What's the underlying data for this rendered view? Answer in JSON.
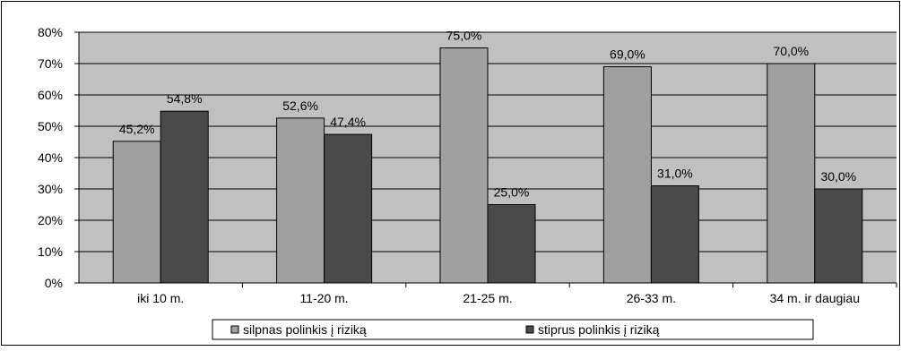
{
  "chart_data": {
    "type": "bar",
    "categories": [
      "iki 10 m.",
      "11-20 m.",
      "21-25 m.",
      "26-33 m.",
      "34 m. ir daugiau"
    ],
    "series": [
      {
        "name": "silpnas polinkis į riziką",
        "values": [
          45.2,
          52.6,
          75.0,
          69.0,
          70.0
        ],
        "labels": [
          "45,2%",
          "52,6%",
          "75,0%",
          "69,0%",
          "70,0%"
        ],
        "color": "#a0a0a0"
      },
      {
        "name": "stiprus polinkis į riziką",
        "values": [
          54.8,
          47.4,
          25.0,
          31.0,
          30.0
        ],
        "labels": [
          "54,8%",
          "47,4%",
          "25,0%",
          "31,0%",
          "30,0%"
        ],
        "color": "#4a4a4a"
      }
    ],
    "y_ticks": [
      "0%",
      "10%",
      "20%",
      "30%",
      "40%",
      "50%",
      "60%",
      "70%",
      "80%"
    ],
    "ylim": [
      0,
      80
    ],
    "grid": true,
    "plot_background": "#c0c0c0",
    "legend_position": "bottom"
  }
}
